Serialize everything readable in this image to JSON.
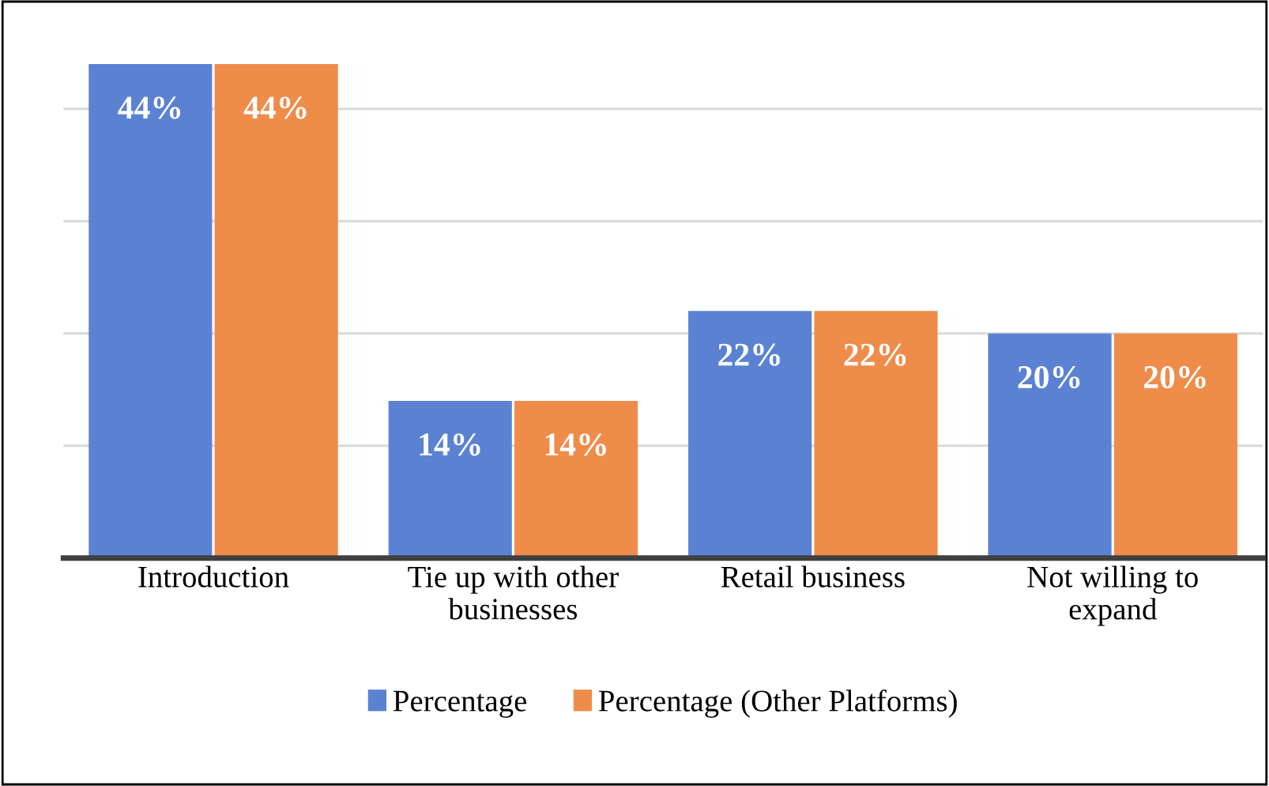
{
  "chart_data": {
    "type": "bar",
    "categories": [
      "Introduction",
      "Tie up with other\nbusinesses",
      "Retail business",
      "Not willing to\nexpand"
    ],
    "series": [
      {
        "name": "Percentage",
        "color": "#5b82d2",
        "values": [
          44,
          14,
          22,
          20
        ],
        "value_labels": [
          "44%",
          "14%",
          "22%",
          "20%"
        ]
      },
      {
        "name": "Percentage (Other Platforms)",
        "color": "#ef8c4a",
        "values": [
          44,
          14,
          22,
          20
        ],
        "value_labels": [
          "44%",
          "14%",
          "22%",
          "20%"
        ]
      }
    ],
    "tick_labels": "x",
    "grid": "y",
    "legend": "bottom"
  }
}
